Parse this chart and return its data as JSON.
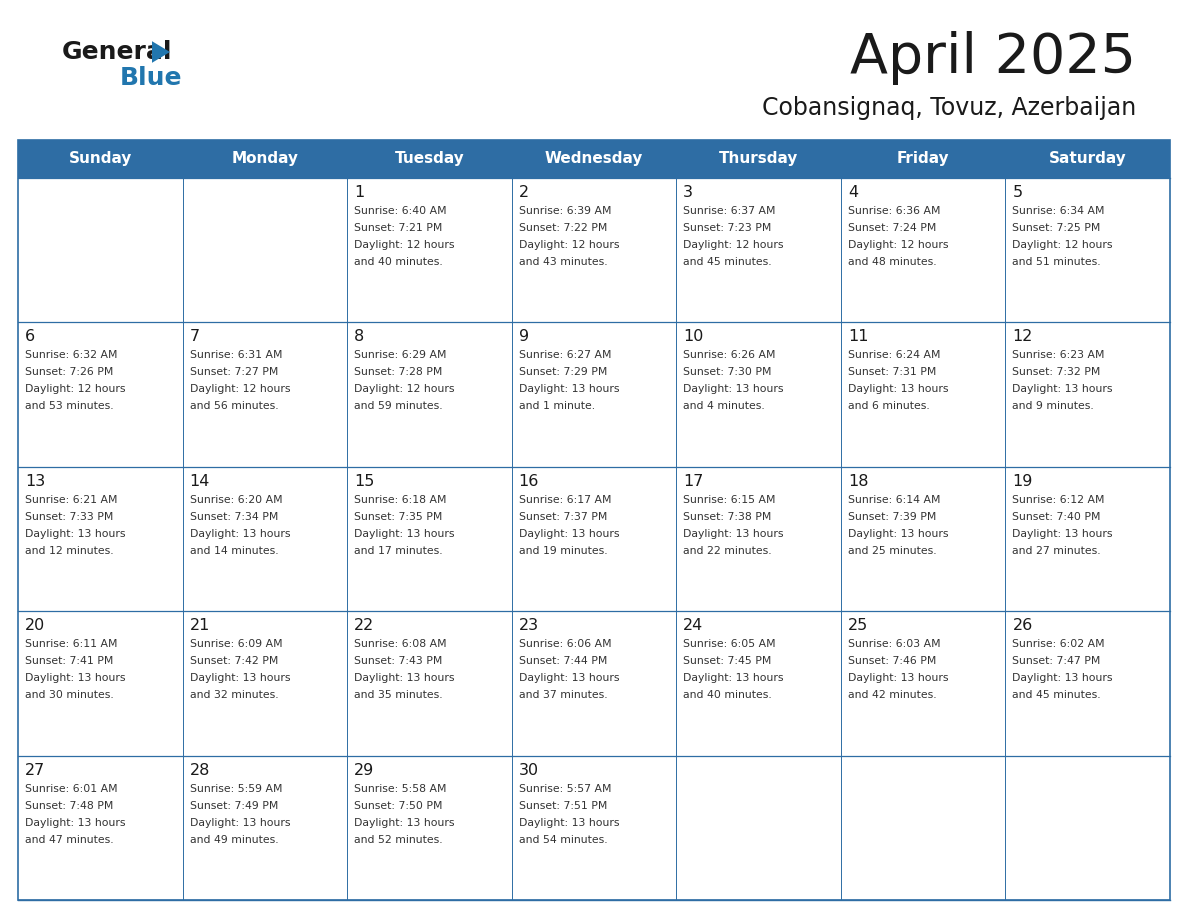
{
  "title": "April 2025",
  "subtitle": "Cobansignaq, Tovuz, Azerbaijan",
  "header_bg": "#2E6DA4",
  "header_text_color": "#FFFFFF",
  "cell_bg": "#FFFFFF",
  "border_color": "#2E6DA4",
  "day_names": [
    "Sunday",
    "Monday",
    "Tuesday",
    "Wednesday",
    "Thursday",
    "Friday",
    "Saturday"
  ],
  "title_color": "#1a1a1a",
  "subtitle_color": "#1a1a1a",
  "day_number_color": "#1a1a1a",
  "info_color": "#333333",
  "logo_general_color": "#1a1a1a",
  "logo_blue_color": "#2176AE",
  "weeks": [
    [
      {
        "day": "",
        "info": ""
      },
      {
        "day": "",
        "info": ""
      },
      {
        "day": "1",
        "info": "Sunrise: 6:40 AM\nSunset: 7:21 PM\nDaylight: 12 hours\nand 40 minutes."
      },
      {
        "day": "2",
        "info": "Sunrise: 6:39 AM\nSunset: 7:22 PM\nDaylight: 12 hours\nand 43 minutes."
      },
      {
        "day": "3",
        "info": "Sunrise: 6:37 AM\nSunset: 7:23 PM\nDaylight: 12 hours\nand 45 minutes."
      },
      {
        "day": "4",
        "info": "Sunrise: 6:36 AM\nSunset: 7:24 PM\nDaylight: 12 hours\nand 48 minutes."
      },
      {
        "day": "5",
        "info": "Sunrise: 6:34 AM\nSunset: 7:25 PM\nDaylight: 12 hours\nand 51 minutes."
      }
    ],
    [
      {
        "day": "6",
        "info": "Sunrise: 6:32 AM\nSunset: 7:26 PM\nDaylight: 12 hours\nand 53 minutes."
      },
      {
        "day": "7",
        "info": "Sunrise: 6:31 AM\nSunset: 7:27 PM\nDaylight: 12 hours\nand 56 minutes."
      },
      {
        "day": "8",
        "info": "Sunrise: 6:29 AM\nSunset: 7:28 PM\nDaylight: 12 hours\nand 59 minutes."
      },
      {
        "day": "9",
        "info": "Sunrise: 6:27 AM\nSunset: 7:29 PM\nDaylight: 13 hours\nand 1 minute."
      },
      {
        "day": "10",
        "info": "Sunrise: 6:26 AM\nSunset: 7:30 PM\nDaylight: 13 hours\nand 4 minutes."
      },
      {
        "day": "11",
        "info": "Sunrise: 6:24 AM\nSunset: 7:31 PM\nDaylight: 13 hours\nand 6 minutes."
      },
      {
        "day": "12",
        "info": "Sunrise: 6:23 AM\nSunset: 7:32 PM\nDaylight: 13 hours\nand 9 minutes."
      }
    ],
    [
      {
        "day": "13",
        "info": "Sunrise: 6:21 AM\nSunset: 7:33 PM\nDaylight: 13 hours\nand 12 minutes."
      },
      {
        "day": "14",
        "info": "Sunrise: 6:20 AM\nSunset: 7:34 PM\nDaylight: 13 hours\nand 14 minutes."
      },
      {
        "day": "15",
        "info": "Sunrise: 6:18 AM\nSunset: 7:35 PM\nDaylight: 13 hours\nand 17 minutes."
      },
      {
        "day": "16",
        "info": "Sunrise: 6:17 AM\nSunset: 7:37 PM\nDaylight: 13 hours\nand 19 minutes."
      },
      {
        "day": "17",
        "info": "Sunrise: 6:15 AM\nSunset: 7:38 PM\nDaylight: 13 hours\nand 22 minutes."
      },
      {
        "day": "18",
        "info": "Sunrise: 6:14 AM\nSunset: 7:39 PM\nDaylight: 13 hours\nand 25 minutes."
      },
      {
        "day": "19",
        "info": "Sunrise: 6:12 AM\nSunset: 7:40 PM\nDaylight: 13 hours\nand 27 minutes."
      }
    ],
    [
      {
        "day": "20",
        "info": "Sunrise: 6:11 AM\nSunset: 7:41 PM\nDaylight: 13 hours\nand 30 minutes."
      },
      {
        "day": "21",
        "info": "Sunrise: 6:09 AM\nSunset: 7:42 PM\nDaylight: 13 hours\nand 32 minutes."
      },
      {
        "day": "22",
        "info": "Sunrise: 6:08 AM\nSunset: 7:43 PM\nDaylight: 13 hours\nand 35 minutes."
      },
      {
        "day": "23",
        "info": "Sunrise: 6:06 AM\nSunset: 7:44 PM\nDaylight: 13 hours\nand 37 minutes."
      },
      {
        "day": "24",
        "info": "Sunrise: 6:05 AM\nSunset: 7:45 PM\nDaylight: 13 hours\nand 40 minutes."
      },
      {
        "day": "25",
        "info": "Sunrise: 6:03 AM\nSunset: 7:46 PM\nDaylight: 13 hours\nand 42 minutes."
      },
      {
        "day": "26",
        "info": "Sunrise: 6:02 AM\nSunset: 7:47 PM\nDaylight: 13 hours\nand 45 minutes."
      }
    ],
    [
      {
        "day": "27",
        "info": "Sunrise: 6:01 AM\nSunset: 7:48 PM\nDaylight: 13 hours\nand 47 minutes."
      },
      {
        "day": "28",
        "info": "Sunrise: 5:59 AM\nSunset: 7:49 PM\nDaylight: 13 hours\nand 49 minutes."
      },
      {
        "day": "29",
        "info": "Sunrise: 5:58 AM\nSunset: 7:50 PM\nDaylight: 13 hours\nand 52 minutes."
      },
      {
        "day": "30",
        "info": "Sunrise: 5:57 AM\nSunset: 7:51 PM\nDaylight: 13 hours\nand 54 minutes."
      },
      {
        "day": "",
        "info": ""
      },
      {
        "day": "",
        "info": ""
      },
      {
        "day": "",
        "info": ""
      }
    ]
  ]
}
